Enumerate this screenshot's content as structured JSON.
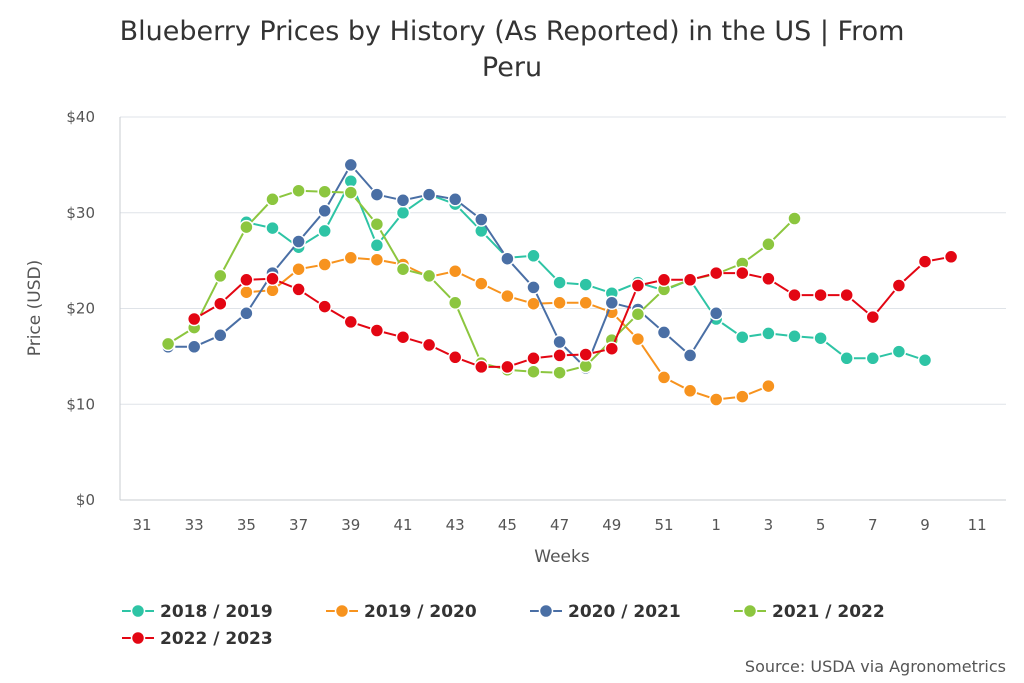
{
  "chart_data": {
    "type": "line",
    "title": "Blueberry Prices by History (As Reported) in the US | From Peru",
    "title_lines": [
      "Blueberry Prices by History (As Reported) in the US | From",
      "Peru"
    ],
    "xlabel": "Weeks",
    "ylabel": "Price (USD)",
    "ylim": [
      0,
      40
    ],
    "y_ticks": [
      0,
      10,
      20,
      30,
      40
    ],
    "y_tick_labels": [
      "$0",
      "$10",
      "$20",
      "$30",
      "$40"
    ],
    "x_categories": [
      "31",
      "32",
      "33",
      "34",
      "35",
      "36",
      "37",
      "38",
      "39",
      "40",
      "41",
      "42",
      "43",
      "44",
      "45",
      "46",
      "47",
      "48",
      "49",
      "50",
      "51",
      "52",
      "1",
      "2",
      "3",
      "4",
      "5",
      "6",
      "7",
      "8",
      "9",
      "10",
      "11"
    ],
    "x_tick_labels": [
      "31",
      "33",
      "35",
      "37",
      "39",
      "41",
      "43",
      "45",
      "47",
      "49",
      "51",
      "1",
      "3",
      "5",
      "7",
      "9",
      "11"
    ],
    "grid": true,
    "legend_position": "bottom-left",
    "series": [
      {
        "name": "2018 / 2019",
        "color": "#2ec4a5",
        "weeks": [
          "35",
          "36",
          "37",
          "38",
          "39",
          "40",
          "41",
          "42",
          "43",
          "44",
          "45",
          "46",
          "47",
          "48",
          "49",
          "50",
          "51",
          "52",
          "1",
          "2",
          "3",
          "4",
          "5",
          "6",
          "7",
          "8",
          "9"
        ],
        "values": [
          29.0,
          28.4,
          26.4,
          28.1,
          33.3,
          26.6,
          30.0,
          31.9,
          30.9,
          28.1,
          25.3,
          25.5,
          22.7,
          22.5,
          21.6,
          22.7,
          21.9,
          23.0,
          18.9,
          17.0,
          17.4,
          17.1,
          16.9,
          14.8,
          14.8,
          15.5,
          14.6
        ]
      },
      {
        "name": "2019 / 2020",
        "color": "#f7931e",
        "weeks": [
          "35",
          "36",
          "37",
          "38",
          "39",
          "40",
          "41",
          "42",
          "43",
          "44",
          "45",
          "46",
          "47",
          "48",
          "49",
          "50",
          "51",
          "52",
          "1",
          "2",
          "3"
        ],
        "values": [
          21.7,
          21.9,
          24.1,
          24.6,
          25.3,
          25.1,
          24.6,
          23.3,
          23.9,
          22.6,
          21.3,
          20.5,
          20.6,
          20.6,
          19.6,
          16.8,
          12.8,
          11.4,
          10.5,
          10.8,
          11.9
        ]
      },
      {
        "name": "2020 / 2021",
        "color": "#4a6fa5",
        "weeks": [
          "32",
          "33",
          "34",
          "35",
          "36",
          "37",
          "38",
          "39",
          "40",
          "41",
          "42",
          "43",
          "44",
          "45",
          "46",
          "47",
          "48",
          "49",
          "50",
          "51",
          "52",
          "1"
        ],
        "values": [
          16.0,
          16.0,
          17.2,
          19.5,
          23.7,
          27.0,
          30.2,
          35.0,
          31.9,
          31.3,
          31.9,
          31.4,
          29.3,
          25.2,
          22.2,
          16.5,
          13.8,
          20.6,
          19.9,
          17.5,
          15.1,
          19.5
        ]
      },
      {
        "name": "2021 / 2022",
        "color": "#8cc63f",
        "weeks": [
          "32",
          "33",
          "34",
          "35",
          "36",
          "37",
          "38",
          "39",
          "40",
          "41",
          "42",
          "43",
          "44",
          "45",
          "46",
          "47",
          "48",
          "49",
          "50",
          "51",
          "52",
          "1",
          "2",
          "3",
          "4"
        ],
        "values": [
          16.3,
          18.0,
          23.4,
          28.5,
          31.4,
          32.3,
          32.2,
          32.1,
          28.8,
          24.1,
          23.4,
          20.6,
          14.3,
          13.6,
          13.4,
          13.3,
          14.0,
          16.7,
          19.4,
          22.0,
          23.0,
          23.6,
          24.7,
          26.7,
          29.4
        ]
      },
      {
        "name": "2022 / 2023",
        "color": "#e30613",
        "weeks": [
          "33",
          "34",
          "35",
          "36",
          "37",
          "38",
          "39",
          "40",
          "41",
          "42",
          "43",
          "44",
          "45",
          "46",
          "47",
          "48",
          "49",
          "50",
          "51",
          "52",
          "1",
          "2",
          "3",
          "4",
          "5",
          "6",
          "7",
          "8",
          "9",
          "10"
        ],
        "values": [
          18.9,
          20.5,
          23.0,
          23.1,
          22.0,
          20.2,
          18.6,
          17.7,
          17.0,
          16.2,
          14.9,
          13.9,
          13.9,
          14.8,
          15.1,
          15.2,
          15.8,
          22.4,
          23.0,
          23.0,
          23.7,
          23.7,
          23.1,
          21.4,
          21.4,
          21.4,
          19.1,
          22.4,
          24.9,
          25.4
        ]
      }
    ]
  },
  "source": "Source: USDA via Agronometrics"
}
